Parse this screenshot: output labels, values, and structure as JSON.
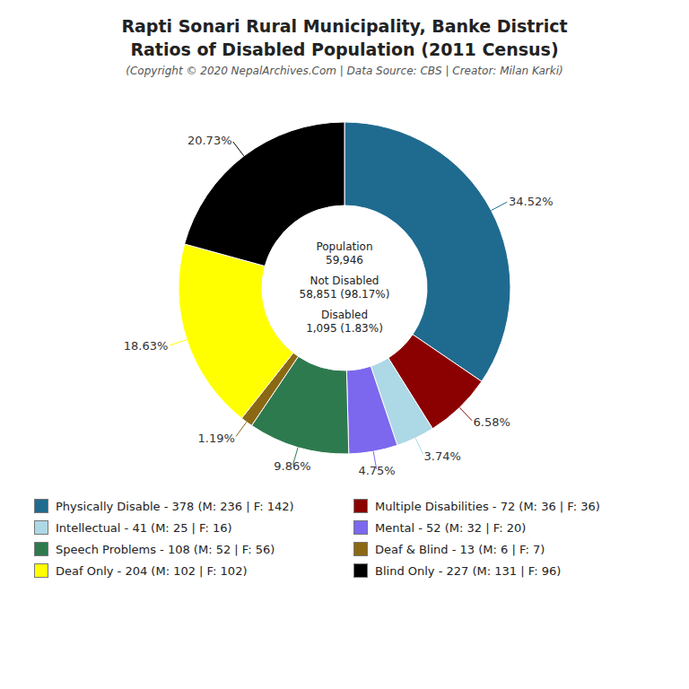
{
  "chart_data": {
    "type": "pie",
    "title": [
      "Rapti Sonari Rural Municipality, Banke District",
      "Ratios of Disabled Population (2011 Census)"
    ],
    "subtitle": "(Copyright © 2020 NepalArchives.Com | Data Source: CBS | Creator: Milan Karki)",
    "annotations": [
      "Population",
      "59,946",
      "Not Disabled",
      "58,851 (98.17%)",
      "Disabled",
      "1,095 (1.83%)"
    ],
    "categories": [
      "Physically Disable - 378 (M: 236 | F: 142)",
      "Multiple Disabilities - 72 (M: 36 | F: 36)",
      "Intellectual - 41 (M: 25 | F: 16)",
      "Mental - 52 (M: 32 | F: 20)",
      "Speech Problems - 108 (M: 52 | F: 56)",
      "Deaf & Blind - 13 (M: 6 | F: 7)",
      "Deaf Only - 204 (M: 102 | F: 102)",
      "Blind Only - 227 (M: 131 | F: 96)"
    ],
    "values": [
      34.52,
      6.58,
      3.74,
      4.75,
      9.86,
      1.19,
      18.63,
      20.73
    ],
    "value_labels": [
      "34.52%",
      "6.58%",
      "3.74%",
      "4.75%",
      "9.86%",
      "1.19%",
      "18.63%",
      "20.73%"
    ],
    "colors": [
      "#1f6b8f",
      "#8b0000",
      "#add8e6",
      "#7b68ee",
      "#2e7a4f",
      "#8b6914",
      "#ffff00",
      "#000000"
    ],
    "data_labels": true,
    "legend": "bottom"
  }
}
